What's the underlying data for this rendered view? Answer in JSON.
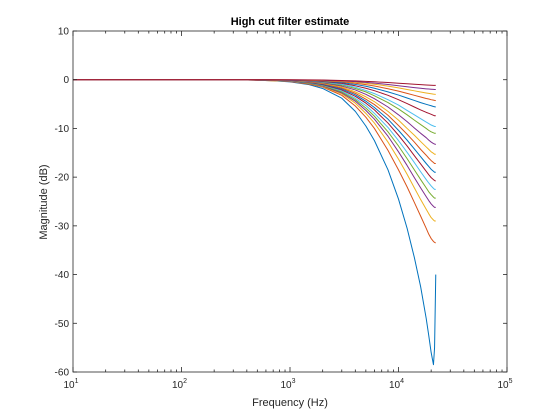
{
  "chart_data": {
    "type": "line",
    "title": "High cut filter estimate",
    "xlabel": "Frequency (Hz)",
    "ylabel": "Magnitude (dB)",
    "xscale": "log",
    "xlim": [
      10,
      100000
    ],
    "ylim": [
      -60,
      10
    ],
    "xticks": [
      {
        "value": 10,
        "base": "10",
        "exp": "1"
      },
      {
        "value": 100,
        "base": "10",
        "exp": "2"
      },
      {
        "value": 1000,
        "base": "10",
        "exp": "3"
      },
      {
        "value": 10000,
        "base": "10",
        "exp": "4"
      },
      {
        "value": 100000,
        "base": "10",
        "exp": "5"
      }
    ],
    "yticks": [
      {
        "value": 10,
        "label": "10"
      },
      {
        "value": 0,
        "label": "0"
      },
      {
        "value": -10,
        "label": "-10"
      },
      {
        "value": -20,
        "label": "-20"
      },
      {
        "value": -30,
        "label": "-30"
      },
      {
        "value": -40,
        "label": "-40"
      },
      {
        "value": -50,
        "label": "-50"
      },
      {
        "value": -60,
        "label": "-60"
      }
    ],
    "grid": false,
    "box": true,
    "nyquist_hz": 22050,
    "x": [
      10,
      300,
      500,
      700,
      1000,
      1500,
      2000,
      3000,
      4000,
      5000,
      6000,
      8000,
      10000,
      12000,
      14000,
      16000,
      18000,
      19000,
      20000,
      21000,
      21500,
      22050
    ],
    "series": [
      {
        "color": "#0072BD",
        "values": [
          0,
          0,
          -0.1,
          -0.2,
          -0.45,
          -1.0,
          -1.8,
          -3.8,
          -6.5,
          -9.5,
          -12.5,
          -18.5,
          -24.5,
          -30.5,
          -36.5,
          -42.5,
          -49,
          -52.5,
          -56,
          -58.5,
          -55,
          -40
        ]
      },
      {
        "color": "#D95319",
        "values": [
          0,
          0,
          -0.1,
          -0.2,
          -0.4,
          -0.9,
          -1.5,
          -3.2,
          -5.4,
          -7.7,
          -10,
          -14.5,
          -18.5,
          -22,
          -25.2,
          -28,
          -30.5,
          -31.7,
          -32.6,
          -33.2,
          -33.4,
          -33.5
        ]
      },
      {
        "color": "#EDB120",
        "values": [
          0,
          0,
          -0.1,
          -0.2,
          -0.35,
          -0.8,
          -1.4,
          -2.9,
          -4.8,
          -6.9,
          -8.9,
          -12.8,
          -16.3,
          -19.4,
          -22.2,
          -24.6,
          -26.6,
          -27.5,
          -28.3,
          -28.8,
          -29,
          -29
        ]
      },
      {
        "color": "#7E2F8E",
        "values": [
          0,
          0,
          -0.1,
          -0.15,
          -0.33,
          -0.75,
          -1.3,
          -2.7,
          -4.4,
          -6.3,
          -8.1,
          -11.6,
          -14.8,
          -17.6,
          -20.1,
          -22.2,
          -24,
          -24.8,
          -25.5,
          -26,
          -26.2,
          -26.2
        ]
      },
      {
        "color": "#77AC30",
        "values": [
          0,
          0,
          -0.05,
          -0.15,
          -0.3,
          -0.7,
          -1.2,
          -2.5,
          -4.1,
          -5.8,
          -7.5,
          -10.7,
          -13.6,
          -16.2,
          -18.5,
          -20.5,
          -22.2,
          -23,
          -23.6,
          -24.1,
          -24.3,
          -24.3
        ]
      },
      {
        "color": "#4DBEEE",
        "values": [
          0,
          0,
          -0.05,
          -0.13,
          -0.28,
          -0.63,
          -1.1,
          -2.3,
          -3.8,
          -5.3,
          -6.9,
          -9.8,
          -12.5,
          -14.9,
          -17,
          -18.9,
          -20.5,
          -21.2,
          -21.8,
          -22.3,
          -22.5,
          -22.5
        ]
      },
      {
        "color": "#A2142F",
        "values": [
          0,
          0,
          -0.05,
          -0.12,
          -0.25,
          -0.57,
          -1.0,
          -2.1,
          -3.4,
          -4.8,
          -6.2,
          -8.9,
          -11.4,
          -13.6,
          -15.6,
          -17.3,
          -18.8,
          -19.5,
          -20.1,
          -20.5,
          -20.7,
          -20.8
        ]
      },
      {
        "color": "#0072BD",
        "values": [
          0,
          0,
          -0.05,
          -0.1,
          -0.23,
          -0.52,
          -0.9,
          -1.9,
          -3.1,
          -4.4,
          -5.7,
          -8.1,
          -10.4,
          -12.4,
          -14.2,
          -15.8,
          -17.2,
          -17.8,
          -18.4,
          -18.8,
          -19,
          -19
        ]
      },
      {
        "color": "#D95319",
        "values": [
          0,
          0,
          -0.04,
          -0.1,
          -0.2,
          -0.47,
          -0.8,
          -1.7,
          -2.8,
          -4,
          -5.1,
          -7.3,
          -9.4,
          -11.2,
          -12.8,
          -14.3,
          -15.5,
          -16.1,
          -16.6,
          -17,
          -17.2,
          -17.2
        ]
      },
      {
        "color": "#EDB120",
        "values": [
          0,
          0,
          -0.04,
          -0.09,
          -0.18,
          -0.42,
          -0.72,
          -1.5,
          -2.5,
          -3.5,
          -4.5,
          -6.5,
          -8.3,
          -10,
          -11.4,
          -12.7,
          -13.8,
          -14.3,
          -14.8,
          -15.1,
          -15.3,
          -15.3
        ]
      },
      {
        "color": "#7E2F8E",
        "values": [
          0,
          0,
          -0.03,
          -0.08,
          -0.16,
          -0.36,
          -0.62,
          -1.3,
          -2.1,
          -3,
          -3.9,
          -5.6,
          -7.2,
          -8.6,
          -9.9,
          -11,
          -11.9,
          -12.4,
          -12.8,
          -13.1,
          -13.2,
          -13.3
        ]
      },
      {
        "color": "#77AC30",
        "values": [
          0,
          0,
          -0.03,
          -0.07,
          -0.14,
          -0.3,
          -0.52,
          -1.1,
          -1.8,
          -2.5,
          -3.3,
          -4.7,
          -6,
          -7.2,
          -8.3,
          -9.2,
          -10,
          -10.4,
          -10.7,
          -10.9,
          -11,
          -11
        ]
      },
      {
        "color": "#4DBEEE",
        "values": [
          0,
          0,
          -0.02,
          -0.06,
          -0.12,
          -0.26,
          -0.45,
          -0.95,
          -1.55,
          -2.2,
          -2.85,
          -4.1,
          -5.2,
          -6.3,
          -7.2,
          -8,
          -8.7,
          -9,
          -9.3,
          -9.5,
          -9.6,
          -9.6
        ]
      },
      {
        "color": "#A2142F",
        "values": [
          0,
          0,
          -0.02,
          -0.05,
          -0.1,
          -0.21,
          -0.36,
          -0.75,
          -1.25,
          -1.75,
          -2.25,
          -3.2,
          -4.1,
          -4.9,
          -5.6,
          -6.2,
          -6.7,
          -6.9,
          -7.1,
          -7.3,
          -7.4,
          -7.4
        ]
      },
      {
        "color": "#0072BD",
        "values": [
          0,
          0,
          -0.01,
          -0.04,
          -0.08,
          -0.17,
          -0.28,
          -0.6,
          -0.97,
          -1.35,
          -1.75,
          -2.5,
          -3.15,
          -3.75,
          -4.25,
          -4.7,
          -5.05,
          -5.2,
          -5.35,
          -5.5,
          -5.55,
          -5.6
        ]
      },
      {
        "color": "#D95319",
        "values": [
          0,
          0,
          -0.01,
          -0.03,
          -0.06,
          -0.13,
          -0.21,
          -0.45,
          -0.72,
          -1,
          -1.3,
          -1.85,
          -2.35,
          -2.8,
          -3.2,
          -3.55,
          -3.85,
          -3.95,
          -4.1,
          -4.2,
          -4.25,
          -4.3
        ]
      },
      {
        "color": "#EDB120",
        "values": [
          0,
          0,
          -0.01,
          -0.02,
          -0.04,
          -0.09,
          -0.15,
          -0.32,
          -0.52,
          -0.72,
          -0.93,
          -1.32,
          -1.68,
          -2,
          -2.28,
          -2.52,
          -2.72,
          -2.8,
          -2.88,
          -2.95,
          -2.98,
          -3
        ]
      },
      {
        "color": "#7E2F8E",
        "values": [
          0,
          0,
          -0.01,
          -0.02,
          -0.03,
          -0.07,
          -0.11,
          -0.24,
          -0.39,
          -0.54,
          -0.69,
          -0.97,
          -1.23,
          -1.45,
          -1.62,
          -1.76,
          -1.87,
          -1.91,
          -1.95,
          -1.98,
          -2,
          -2
        ]
      },
      {
        "color": "#A2142F",
        "values": [
          0,
          0,
          0,
          -0.01,
          -0.02,
          -0.04,
          -0.07,
          -0.15,
          -0.24,
          -0.33,
          -0.42,
          -0.58,
          -0.72,
          -0.84,
          -0.94,
          -1.02,
          -1.08,
          -1.11,
          -1.13,
          -1.15,
          -1.16,
          -1.17
        ]
      }
    ]
  }
}
